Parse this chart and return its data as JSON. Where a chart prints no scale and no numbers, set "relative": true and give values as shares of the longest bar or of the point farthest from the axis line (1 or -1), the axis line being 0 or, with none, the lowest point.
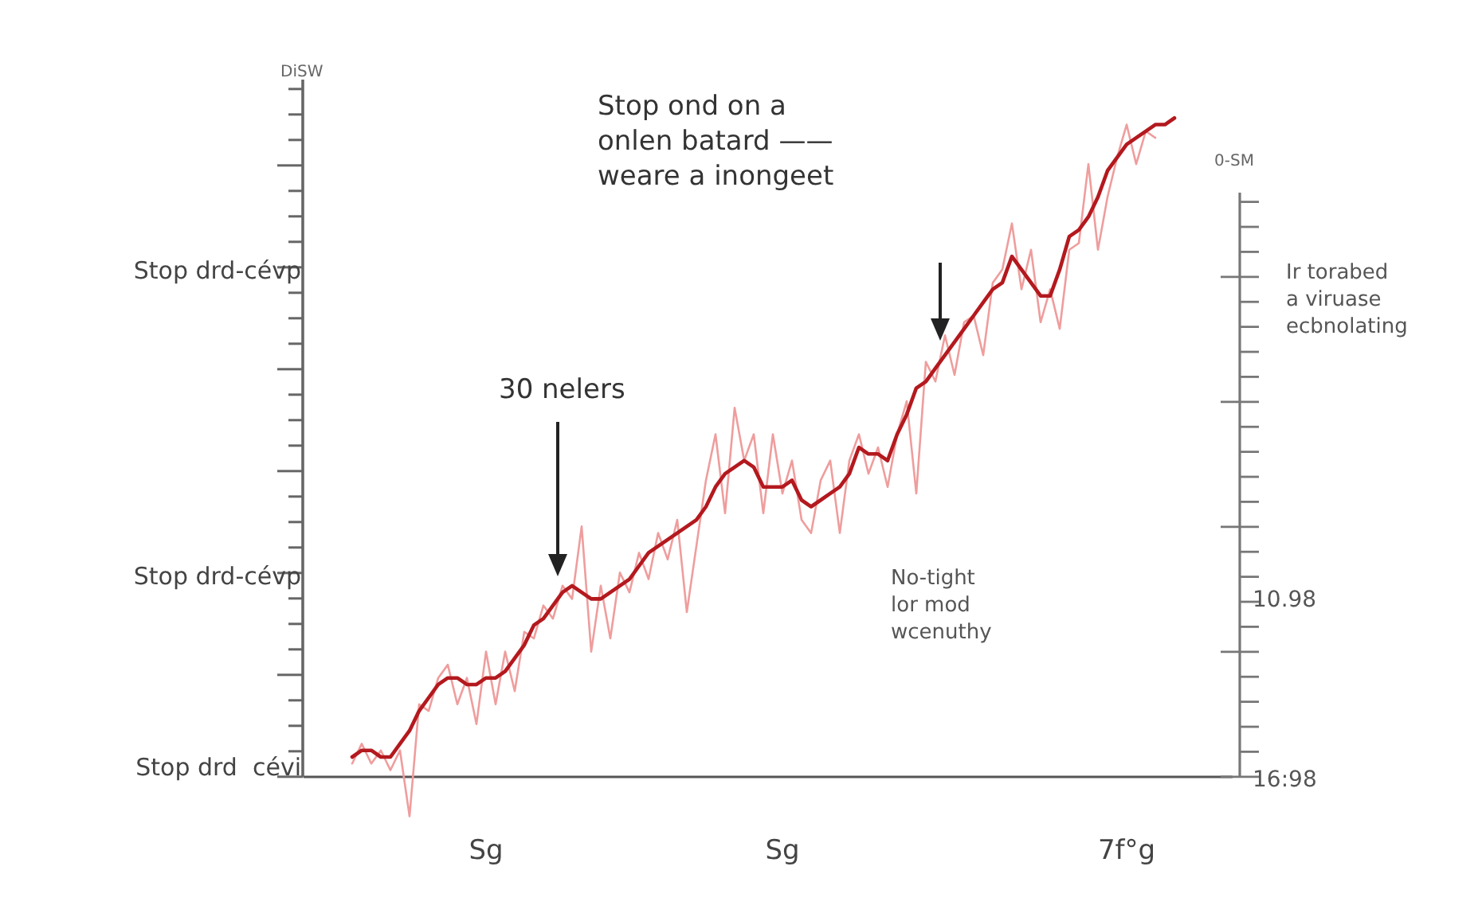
{
  "chart_data": {
    "type": "line",
    "relative": true,
    "ylabel": "DiSW",
    "marker": "none",
    "line_style": "solid",
    "categories": [
      null,
      null,
      null,
      null,
      null,
      null,
      null,
      null,
      null,
      null,
      null,
      null,
      null,
      null,
      null,
      null,
      null,
      null,
      null,
      "Sg",
      null,
      null,
      null,
      null,
      null,
      null,
      null,
      null,
      null,
      null,
      null,
      null,
      null,
      null,
      null,
      null,
      null,
      null,
      null,
      null,
      null,
      null,
      null,
      null,
      null,
      null,
      null,
      null,
      null,
      null,
      "Sg",
      null,
      null,
      null,
      null,
      null,
      null,
      null,
      null,
      null,
      null,
      null,
      null,
      null,
      null,
      null,
      null,
      null,
      null,
      null,
      null,
      null,
      null,
      null,
      null,
      null,
      null,
      null,
      null,
      null,
      null,
      null,
      null,
      null,
      null,
      null,
      "7f°g",
      null,
      null,
      null,
      null,
      null,
      null,
      null,
      null,
      null,
      null,
      null
    ],
    "series": [
      {
        "color": "#ef9d9d",
        "values": [
          null,
          null,
          null,
          null,
          null,
          0.02,
          0.05,
          0.02,
          0.04,
          0.01,
          0.04,
          -0.06,
          0.11,
          0.1,
          0.15,
          0.17,
          0.11,
          0.15,
          0.08,
          0.19,
          0.11,
          0.19,
          0.13,
          0.22,
          0.21,
          0.26,
          0.24,
          0.29,
          0.27,
          0.38,
          0.19,
          0.29,
          0.21,
          0.31,
          0.28,
          0.34,
          0.3,
          0.37,
          0.33,
          0.39,
          0.25,
          0.35,
          0.45,
          0.52,
          0.4,
          0.56,
          0.48,
          0.52,
          0.4,
          0.52,
          0.43,
          0.48,
          0.39,
          0.37,
          0.45,
          0.48,
          0.37,
          0.48,
          0.52,
          0.46,
          0.5,
          0.44,
          0.52,
          0.57,
          0.43,
          0.63,
          0.6,
          0.67,
          0.61,
          0.69,
          0.7,
          0.64,
          0.75,
          0.77,
          0.84,
          0.74,
          0.8,
          0.69,
          0.74,
          0.68,
          0.8,
          0.81,
          0.93,
          0.8,
          0.88,
          0.94,
          0.99,
          0.93,
          0.98,
          0.97,
          null,
          null,
          null,
          null,
          null,
          null,
          null,
          null
        ]
      },
      {
        "color": "#b3191e",
        "values": [
          null,
          null,
          null,
          null,
          null,
          0.03,
          0.04,
          0.04,
          0.03,
          0.03,
          0.05,
          0.07,
          0.1,
          0.12,
          0.14,
          0.15,
          0.15,
          0.14,
          0.14,
          0.15,
          0.15,
          0.16,
          0.18,
          0.2,
          0.23,
          0.24,
          0.26,
          0.28,
          0.29,
          0.28,
          0.27,
          0.27,
          0.28,
          0.29,
          0.3,
          0.32,
          0.34,
          0.35,
          0.36,
          0.37,
          0.38,
          0.39,
          0.41,
          0.44,
          0.46,
          0.47,
          0.48,
          0.47,
          0.44,
          0.44,
          0.44,
          0.45,
          0.42,
          0.41,
          0.42,
          0.43,
          0.44,
          0.46,
          0.5,
          0.49,
          0.49,
          0.48,
          0.52,
          0.55,
          0.59,
          0.6,
          0.62,
          0.64,
          0.66,
          0.68,
          0.7,
          0.72,
          0.74,
          0.75,
          0.79,
          0.77,
          0.75,
          0.73,
          0.73,
          0.77,
          0.82,
          0.83,
          0.85,
          0.88,
          0.92,
          0.94,
          0.96,
          0.97,
          0.98,
          0.99,
          0.99,
          1,
          null,
          null,
          null,
          null,
          null,
          null
        ]
      }
    ],
    "annotations": [
      "Stop ond on a\nonlen batard ——\nweare a inongeet",
      "30 nelers",
      "Ir torabed\na viruase\necbnolating",
      "No-tight\nlor mod\nwcenuthy",
      "Stop drd-cévp",
      "Stop drd-cévp",
      "Stop drd  cévi",
      "0-SM",
      "10.98",
      "16:98"
    ]
  }
}
